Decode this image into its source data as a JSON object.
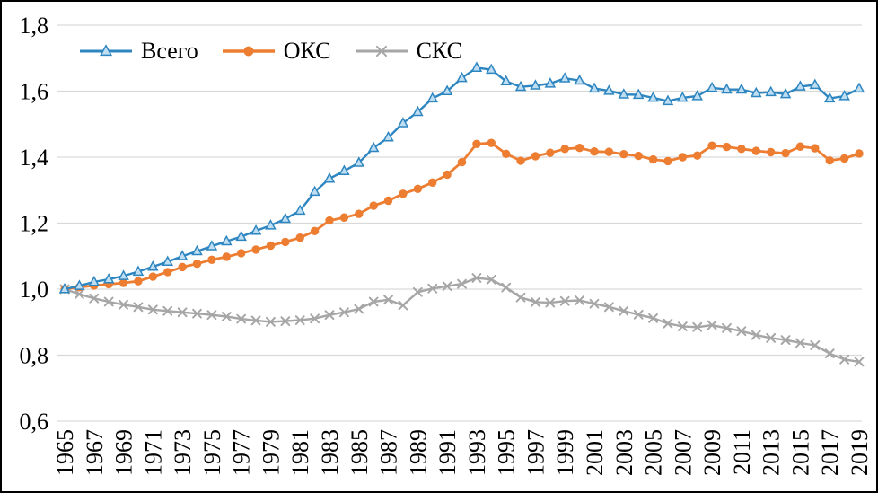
{
  "figure": {
    "background": "#ffffff",
    "border_color": "#000000",
    "grid_color": "#d9d9d9"
  },
  "chart_data": {
    "type": "line",
    "title": "",
    "xlabel": "",
    "ylabel": "",
    "grid": "horizontal",
    "legend_position": "top-left",
    "ylim": [
      0.6,
      1.8
    ],
    "y_ticks": [
      0.6,
      0.8,
      1.0,
      1.2,
      1.4,
      1.6,
      1.8
    ],
    "y_tick_labels": [
      "0,6",
      "0,8",
      "1,0",
      "1,2",
      "1,4",
      "1,6",
      "1,8"
    ],
    "x": [
      1965,
      1966,
      1967,
      1968,
      1969,
      1970,
      1971,
      1972,
      1973,
      1974,
      1975,
      1976,
      1977,
      1978,
      1979,
      1980,
      1981,
      1982,
      1983,
      1984,
      1985,
      1986,
      1987,
      1988,
      1989,
      1990,
      1991,
      1992,
      1993,
      1994,
      1995,
      1996,
      1997,
      1998,
      1999,
      2000,
      2001,
      2002,
      2003,
      2004,
      2005,
      2006,
      2007,
      2008,
      2009,
      2010,
      2011,
      2012,
      2013,
      2014,
      2015,
      2016,
      2017,
      2018,
      2019
    ],
    "x_tick_labels": [
      "1965",
      "1967",
      "1969",
      "1971",
      "1973",
      "1975",
      "1977",
      "1979",
      "1981",
      "1983",
      "1985",
      "1987",
      "1989",
      "1991",
      "1993",
      "1995",
      "1997",
      "1999",
      "2001",
      "2003",
      "2005",
      "2007",
      "2009",
      "2011",
      "2013",
      "2015",
      "2017",
      "2019"
    ],
    "series": [
      {
        "name": "Всего",
        "color": "#2e86c1",
        "marker": "triangle",
        "marker_fill": "#bfdef2",
        "values": [
          1.0,
          1.01,
          1.022,
          1.03,
          1.04,
          1.053,
          1.068,
          1.083,
          1.1,
          1.115,
          1.13,
          1.145,
          1.159,
          1.177,
          1.193,
          1.213,
          1.238,
          1.295,
          1.335,
          1.358,
          1.383,
          1.428,
          1.46,
          1.503,
          1.537,
          1.578,
          1.6,
          1.64,
          1.671,
          1.665,
          1.63,
          1.613,
          1.617,
          1.623,
          1.639,
          1.632,
          1.608,
          1.601,
          1.59,
          1.589,
          1.58,
          1.57,
          1.58,
          1.585,
          1.61,
          1.605,
          1.605,
          1.594,
          1.597,
          1.591,
          1.614,
          1.619,
          1.578,
          1.585,
          1.608
        ]
      },
      {
        "name": "ОКС",
        "color": "#ed7d31",
        "marker": "circle",
        "marker_fill": "#ed7d31",
        "values": [
          1.0,
          1.006,
          1.011,
          1.015,
          1.019,
          1.024,
          1.038,
          1.052,
          1.067,
          1.077,
          1.089,
          1.098,
          1.109,
          1.12,
          1.132,
          1.143,
          1.156,
          1.176,
          1.208,
          1.217,
          1.228,
          1.253,
          1.268,
          1.289,
          1.304,
          1.323,
          1.347,
          1.385,
          1.44,
          1.443,
          1.41,
          1.389,
          1.403,
          1.413,
          1.425,
          1.428,
          1.417,
          1.416,
          1.409,
          1.404,
          1.393,
          1.388,
          1.4,
          1.405,
          1.435,
          1.431,
          1.425,
          1.419,
          1.415,
          1.412,
          1.432,
          1.427,
          1.39,
          1.396,
          1.411
        ]
      },
      {
        "name": "СКС",
        "color": "#a6a6a6",
        "marker": "x",
        "marker_fill": "#a6a6a6",
        "values": [
          1.0,
          0.985,
          0.972,
          0.962,
          0.953,
          0.946,
          0.938,
          0.934,
          0.93,
          0.926,
          0.922,
          0.917,
          0.91,
          0.905,
          0.901,
          0.903,
          0.906,
          0.911,
          0.922,
          0.93,
          0.94,
          0.962,
          0.968,
          0.951,
          0.991,
          1.002,
          1.009,
          1.016,
          1.034,
          1.029,
          1.005,
          0.975,
          0.961,
          0.959,
          0.964,
          0.966,
          0.956,
          0.946,
          0.934,
          0.923,
          0.912,
          0.896,
          0.887,
          0.885,
          0.891,
          0.882,
          0.873,
          0.861,
          0.852,
          0.846,
          0.837,
          0.83,
          0.805,
          0.787,
          0.78
        ]
      }
    ]
  }
}
